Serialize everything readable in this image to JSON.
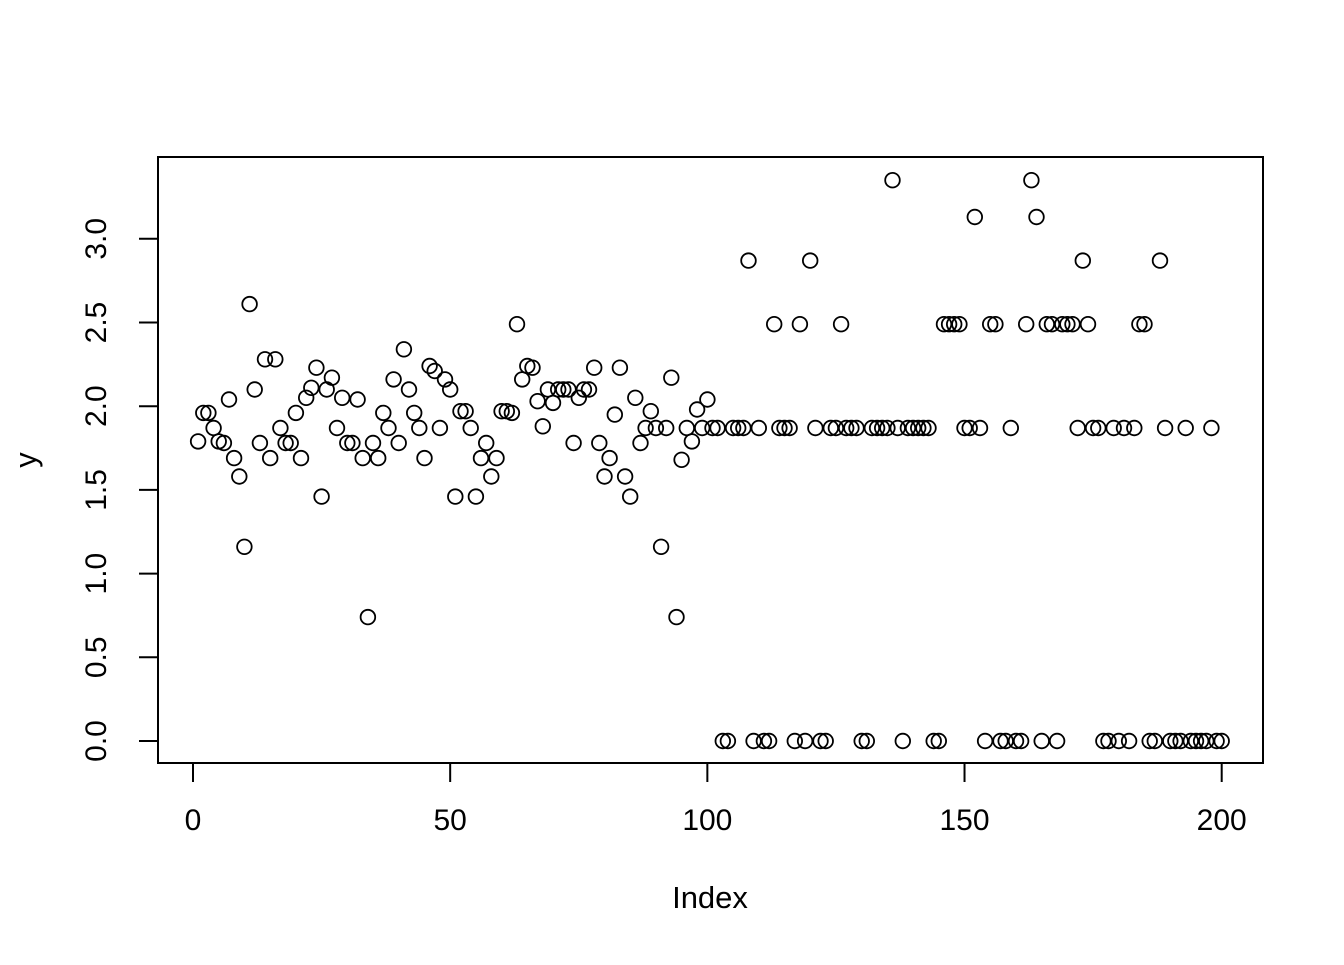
{
  "figure": {
    "background_color": "#ffffff",
    "point_color": "#000000",
    "axis_color": "#000000"
  },
  "chart_data": {
    "type": "scatter",
    "title": "",
    "xlabel": "Index",
    "ylabel": "y",
    "marker": "open-circle",
    "grid": false,
    "legend": "none",
    "xlim": [
      -7,
      208
    ],
    "ylim": [
      -0.1,
      3.45
    ],
    "x_ticks": [
      0,
      50,
      100,
      150,
      200
    ],
    "x_tick_labels": [
      "0",
      "50",
      "100",
      "150",
      "200"
    ],
    "y_ticks": [
      0.0,
      0.5,
      1.0,
      1.5,
      2.0,
      2.5,
      3.0
    ],
    "y_tick_labels": [
      "0.0",
      "0.5",
      "1.0",
      "1.5",
      "2.0",
      "2.5",
      "3.0"
    ],
    "x": [
      1,
      2,
      3,
      4,
      5,
      6,
      7,
      8,
      9,
      10,
      11,
      12,
      13,
      14,
      15,
      16,
      17,
      18,
      19,
      20,
      21,
      22,
      23,
      24,
      25,
      26,
      27,
      28,
      29,
      30,
      31,
      32,
      33,
      34,
      35,
      36,
      37,
      38,
      39,
      40,
      41,
      42,
      43,
      44,
      45,
      46,
      47,
      48,
      49,
      50,
      51,
      52,
      53,
      54,
      55,
      56,
      57,
      58,
      59,
      60,
      61,
      62,
      63,
      64,
      65,
      66,
      67,
      68,
      69,
      70,
      71,
      72,
      73,
      74,
      75,
      76,
      77,
      78,
      79,
      80,
      81,
      82,
      83,
      84,
      85,
      86,
      87,
      88,
      89,
      90,
      91,
      92,
      93,
      94,
      95,
      96,
      97,
      98,
      99,
      100,
      101,
      102,
      103,
      104,
      105,
      106,
      107,
      108,
      109,
      110,
      111,
      112,
      113,
      114,
      115,
      116,
      117,
      118,
      119,
      120,
      121,
      122,
      123,
      124,
      125,
      126,
      127,
      128,
      129,
      130,
      131,
      132,
      133,
      134,
      135,
      136,
      137,
      138,
      139,
      140,
      141,
      142,
      143,
      144,
      145,
      146,
      147,
      148,
      149,
      150,
      151,
      152,
      153,
      154,
      155,
      156,
      157,
      158,
      159,
      160,
      161,
      162,
      163,
      164,
      165,
      166,
      167,
      168,
      169,
      170,
      171,
      172,
      173,
      174,
      175,
      176,
      177,
      178,
      179,
      180,
      181,
      182,
      183,
      184,
      185,
      186,
      187,
      188,
      189,
      190,
      191,
      192,
      193,
      194,
      195,
      196,
      197,
      198,
      199,
      200
    ],
    "y": [
      1.79,
      1.96,
      1.96,
      1.87,
      1.79,
      1.78,
      2.04,
      1.69,
      1.58,
      1.16,
      2.61,
      2.1,
      1.78,
      2.28,
      1.69,
      2.28,
      1.87,
      1.78,
      1.78,
      1.96,
      1.69,
      2.05,
      2.11,
      2.23,
      1.46,
      2.1,
      2.17,
      1.87,
      2.05,
      1.78,
      1.78,
      2.04,
      1.69,
      0.74,
      1.78,
      1.69,
      1.96,
      1.87,
      2.16,
      1.78,
      2.34,
      2.1,
      1.96,
      1.87,
      1.69,
      2.24,
      2.21,
      1.87,
      2.16,
      2.1,
      1.46,
      1.97,
      1.97,
      1.87,
      1.46,
      1.69,
      1.78,
      1.58,
      1.69,
      1.97,
      1.97,
      1.96,
      2.49,
      2.16,
      2.24,
      2.23,
      2.03,
      1.88,
      2.1,
      2.02,
      2.1,
      2.1,
      2.1,
      1.78,
      2.05,
      2.1,
      2.1,
      2.23,
      1.78,
      1.58,
      1.69,
      1.95,
      2.23,
      1.58,
      1.46,
      2.05,
      1.78,
      1.87,
      1.97,
      1.87,
      1.16,
      1.87,
      2.17,
      0.74,
      1.68,
      1.87,
      1.79,
      1.98,
      1.87,
      2.04,
      1.87,
      1.87,
      0,
      0,
      1.87,
      1.87,
      1.87,
      2.87,
      0,
      1.87,
      0,
      0,
      2.49,
      1.87,
      1.87,
      1.87,
      0,
      2.49,
      0,
      2.87,
      1.87,
      0,
      0,
      1.87,
      1.87,
      2.49,
      1.87,
      1.87,
      1.87,
      0,
      0,
      1.87,
      1.87,
      1.87,
      1.87,
      3.35,
      1.87,
      0,
      1.87,
      1.87,
      1.87,
      1.87,
      1.87,
      0,
      0,
      2.49,
      2.49,
      2.49,
      2.49,
      1.87,
      1.87,
      3.13,
      1.87,
      0,
      2.49,
      2.49,
      0,
      0,
      1.87,
      0,
      0,
      2.49,
      3.35,
      3.13,
      0,
      2.49,
      2.49,
      0,
      2.49,
      2.49,
      2.49,
      1.87,
      2.87,
      2.49,
      1.87,
      1.87,
      0,
      0,
      1.87,
      0,
      1.87,
      0,
      1.87,
      2.49,
      2.49,
      0,
      0,
      2.87,
      1.87,
      0,
      0,
      0,
      1.87,
      0,
      0,
      0,
      0,
      1.87,
      0,
      0
    ]
  }
}
